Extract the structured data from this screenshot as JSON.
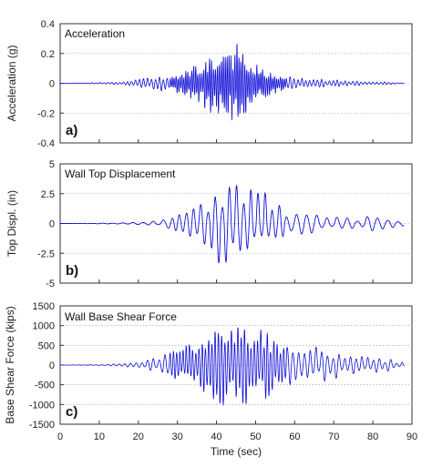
{
  "chart_data": [
    {
      "type": "line",
      "title": "Acceleration",
      "panel_label": "a)",
      "ylabel": "Acceleration (g)",
      "ylim": [
        -0.4,
        0.4
      ],
      "yticks": [
        -0.4,
        -0.2,
        0,
        0.2,
        0.4
      ],
      "ytick_labels": [
        "-0.4",
        "-0.2",
        "0",
        "0.2",
        "0.4"
      ],
      "xlim": [
        0,
        90
      ],
      "grid": true,
      "color": "#1010d8",
      "envelope": {
        "t": [
          0,
          10,
          15,
          20,
          25,
          30,
          33,
          36,
          38,
          40,
          42,
          44,
          46,
          47,
          48,
          50,
          52,
          55,
          58,
          62,
          66,
          70,
          75,
          80,
          85,
          88
        ],
        "amplitude": [
          0,
          0.005,
          0.01,
          0.025,
          0.05,
          0.07,
          0.1,
          0.15,
          0.2,
          0.22,
          0.2,
          0.25,
          0.3,
          0.24,
          0.18,
          0.14,
          0.1,
          0.07,
          0.05,
          0.035,
          0.03,
          0.025,
          0.015,
          0.012,
          0.008,
          0.005
        ]
      }
    },
    {
      "type": "line",
      "title": "Wall Top Displacement",
      "panel_label": "b)",
      "ylabel": "Top Displ. (in)",
      "ylim": [
        -5,
        5
      ],
      "yticks": [
        -5,
        -2.5,
        0,
        2.5,
        5
      ],
      "ytick_labels": [
        "-5",
        "-2.5",
        "0",
        "2.5",
        "5"
      ],
      "xlim": [
        0,
        90
      ],
      "grid": true,
      "color": "#1010d8",
      "envelope": {
        "t": [
          0,
          15,
          20,
          25,
          28,
          30,
          33,
          36,
          38,
          40,
          42,
          44,
          47,
          50,
          53,
          56,
          60,
          65,
          70,
          75,
          78,
          82,
          88
        ],
        "amplitude": [
          0,
          0.05,
          0.1,
          0.25,
          0.5,
          1.0,
          1.7,
          2.1,
          2.7,
          3.3,
          3.8,
          3.4,
          3.0,
          2.8,
          2.6,
          1.7,
          1.2,
          0.9,
          0.6,
          0.4,
          0.8,
          0.5,
          0.2
        ]
      }
    },
    {
      "type": "line",
      "title": "Wall Base Shear Force",
      "panel_label": "c)",
      "ylabel": "Base Shear Force (kips)",
      "ylim": [
        -1500,
        1500
      ],
      "yticks": [
        -1500,
        -1000,
        -500,
        0,
        500,
        1000,
        1500
      ],
      "ytick_labels": [
        "-1500",
        "-1000",
        "-500",
        "0",
        "500",
        "1000",
        "1500"
      ],
      "xlim": [
        0,
        90
      ],
      "xticks": [
        0,
        10,
        20,
        30,
        40,
        50,
        60,
        70,
        80,
        90
      ],
      "xtick_labels": [
        "0",
        "10",
        "20",
        "30",
        "40",
        "50",
        "60",
        "70",
        "80",
        "90"
      ],
      "xlabel": "Time (sec)",
      "grid": true,
      "color": "#1010d8",
      "envelope": {
        "t": [
          0,
          10,
          15,
          20,
          25,
          30,
          33,
          36,
          38,
          40,
          42,
          44,
          46,
          48,
          50,
          52,
          55,
          58,
          62,
          66,
          70,
          75,
          80,
          85,
          88
        ],
        "amplitude": [
          0,
          10,
          30,
          80,
          200,
          420,
          520,
          650,
          800,
          1000,
          1100,
          1050,
          1000,
          1000,
          950,
          900,
          750,
          650,
          600,
          450,
          350,
          250,
          200,
          150,
          60
        ]
      }
    }
  ]
}
